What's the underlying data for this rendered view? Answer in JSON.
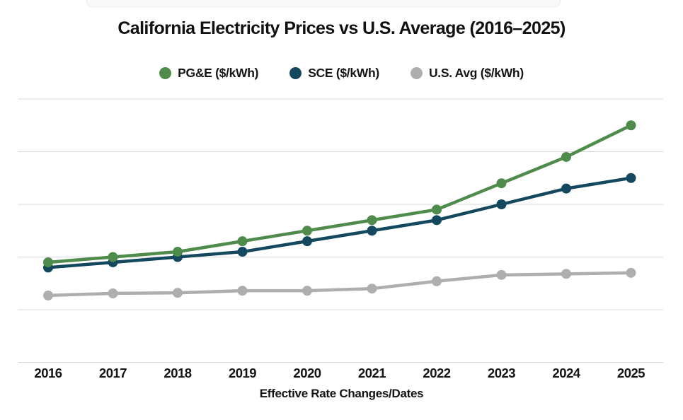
{
  "chart_data": {
    "type": "line",
    "title": "California Electricity Prices vs U.S. Average (2016–2025)",
    "xlabel": "Effective Rate Changes/Dates",
    "ylabel": "",
    "categories": [
      "2016",
      "2017",
      "2018",
      "2019",
      "2020",
      "2021",
      "2022",
      "2023",
      "2024",
      "2025"
    ],
    "series": [
      {
        "name": "PG&E ($/kWh)",
        "color": "#4f8c4c",
        "values": [
          0.19,
          0.2,
          0.21,
          0.23,
          0.25,
          0.27,
          0.29,
          0.34,
          0.39,
          0.45
        ]
      },
      {
        "name": "SCE ($/kWh)",
        "color": "#14485f",
        "values": [
          0.18,
          0.19,
          0.2,
          0.21,
          0.23,
          0.25,
          0.27,
          0.3,
          0.33,
          0.35
        ]
      },
      {
        "name": "U.S. Avg ($/kWh)",
        "color": "#aeaeae",
        "values": [
          0.127,
          0.131,
          0.132,
          0.136,
          0.136,
          0.14,
          0.154,
          0.166,
          0.168,
          0.17
        ]
      }
    ],
    "ylim": [
      0,
      0.55
    ],
    "grid": {
      "horizontal": true,
      "y_step": 0.1,
      "y_max_line": 0.5,
      "color": "#d8d8d8"
    },
    "legend_position": "top",
    "y_axis_labels_visible": false,
    "text_color": "#151515"
  }
}
